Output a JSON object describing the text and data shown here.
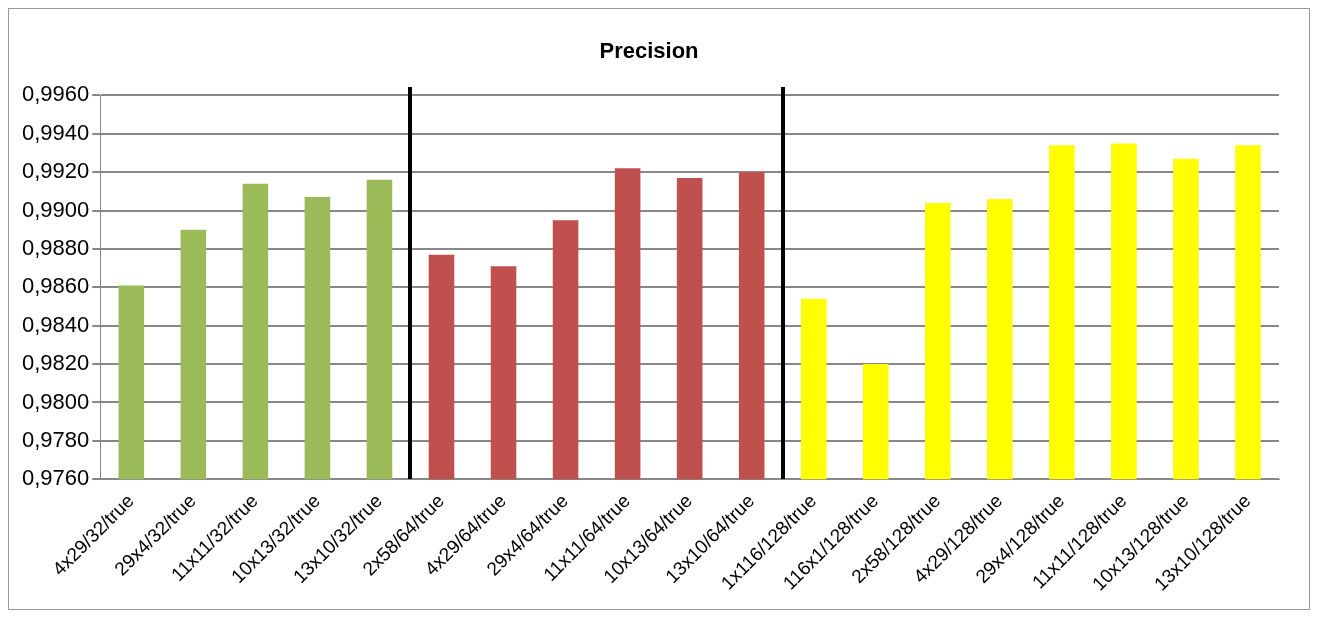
{
  "chart_data": {
    "type": "bar",
    "title": "Precision",
    "categories": [
      "4x29/32/true",
      "29x4/32/true",
      "11x11/32/true",
      "10x13/32/true",
      "13x10/32/true",
      "2x58/64/true",
      "4x29/64/true",
      "29x4/64/true",
      "11x11/64/true",
      "10x13/64/true",
      "13x10/64/true",
      "1x116/128/true",
      "116x1/128/true",
      "2x58/128/true",
      "4x29/128/true",
      "29x4/128/true",
      "11x11/128/true",
      "10x13/128/true",
      "13x10/128/true"
    ],
    "values": [
      0.9861,
      0.989,
      0.9914,
      0.9907,
      0.9916,
      0.9877,
      0.9871,
      0.9895,
      0.9922,
      0.9917,
      0.992,
      0.9854,
      0.982,
      0.9904,
      0.9906,
      0.9934,
      0.9935,
      0.9927,
      0.9934
    ],
    "colors": [
      "#9bbb59",
      "#9bbb59",
      "#9bbb59",
      "#9bbb59",
      "#9bbb59",
      "#c0504d",
      "#c0504d",
      "#c0504d",
      "#c0504d",
      "#c0504d",
      "#c0504d",
      "#ffff00",
      "#ffff00",
      "#ffff00",
      "#ffff00",
      "#ffff00",
      "#ffff00",
      "#ffff00",
      "#ffff00"
    ],
    "ylim": [
      0.976,
      0.996
    ],
    "yticks": [
      {
        "value": 0.976,
        "label": "0,9760"
      },
      {
        "value": 0.978,
        "label": "0,9780"
      },
      {
        "value": 0.98,
        "label": "0,9800"
      },
      {
        "value": 0.982,
        "label": "0,9820"
      },
      {
        "value": 0.984,
        "label": "0,9840"
      },
      {
        "value": 0.986,
        "label": "0,9860"
      },
      {
        "value": 0.988,
        "label": "0,9880"
      },
      {
        "value": 0.99,
        "label": "0,9900"
      },
      {
        "value": 0.992,
        "label": "0,9920"
      },
      {
        "value": 0.994,
        "label": "0,9940"
      },
      {
        "value": 0.996,
        "label": "0,9960"
      }
    ],
    "grid": "y",
    "legend": false
  }
}
